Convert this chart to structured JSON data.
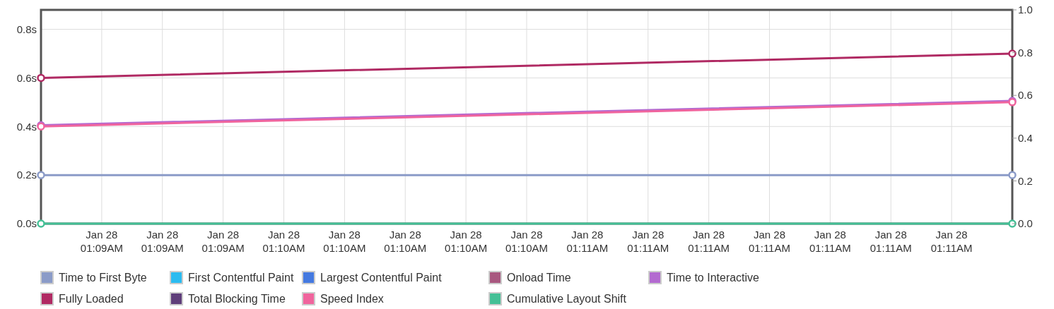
{
  "chart_data": {
    "type": "line",
    "categories": [
      null,
      "Jan 28\n01:09AM",
      "Jan 28\n01:09AM",
      "Jan 28\n01:09AM",
      "Jan 28\n01:10AM",
      "Jan 28\n01:10AM",
      "Jan 28\n01:10AM",
      "Jan 28\n01:10AM",
      "Jan 28\n01:10AM",
      "Jan 28\n01:11AM",
      "Jan 28\n01:11AM",
      "Jan 28\n01:11AM",
      "Jan 28\n01:11AM",
      "Jan 28\n01:11AM",
      "Jan 28\n01:11AM",
      "Jan 28\n01:11AM",
      null
    ],
    "ylim": [
      0,
      0.88
    ],
    "yticks": [
      {
        "value": 0,
        "label": "0.0s"
      },
      {
        "value": 0.2,
        "label": "0.2s"
      },
      {
        "value": 0.4,
        "label": "0.4s"
      },
      {
        "value": 0.6,
        "label": "0.6s"
      },
      {
        "value": 0.8,
        "label": "0.8s"
      }
    ],
    "y2lim": [
      0,
      1.0
    ],
    "y2ticks": [
      {
        "value": 0,
        "label": "0.0"
      },
      0.2,
      0.4,
      0.6,
      0.8,
      {
        "value": 1.0,
        "label": "1.0"
      }
    ],
    "grid": true,
    "legend": "bottom",
    "marker": "circle",
    "series": [
      {
        "name": "Time to First Byte",
        "color": "#8b9bc8",
        "values": [
          0.2,
          null,
          null,
          null,
          null,
          null,
          null,
          null,
          null,
          null,
          null,
          null,
          null,
          null,
          null,
          null,
          0.2
        ]
      },
      {
        "name": "First Contentful Paint",
        "color": "#2bbbf0",
        "values": [
          null,
          null,
          null,
          null,
          null,
          null,
          null,
          null,
          null,
          null,
          null,
          null,
          null,
          null,
          null,
          null,
          null
        ]
      },
      {
        "name": "Largest Contentful Paint",
        "color": "#4479e0",
        "values": [
          null,
          null,
          null,
          null,
          null,
          null,
          null,
          null,
          null,
          null,
          null,
          null,
          null,
          null,
          null,
          null,
          null
        ]
      },
      {
        "name": "Onload Time",
        "color": "#a8577f",
        "values": [
          null,
          null,
          null,
          null,
          null,
          null,
          null,
          null,
          null,
          null,
          null,
          null,
          null,
          null,
          null,
          null,
          null
        ]
      },
      {
        "name": "Time to Interactive",
        "color": "#b36ad0",
        "values": [
          0.405,
          null,
          null,
          null,
          null,
          null,
          null,
          null,
          null,
          null,
          null,
          null,
          null,
          null,
          null,
          null,
          0.505
        ]
      },
      {
        "name": "Fully Loaded",
        "color": "#b02a63",
        "values": [
          0.6,
          null,
          null,
          null,
          null,
          null,
          null,
          null,
          null,
          null,
          null,
          null,
          null,
          null,
          null,
          null,
          0.7
        ]
      },
      {
        "name": "Total Blocking Time",
        "color": "#5f3e7a",
        "values": [
          null,
          null,
          null,
          null,
          null,
          null,
          null,
          null,
          null,
          null,
          null,
          null,
          null,
          null,
          null,
          null,
          null
        ]
      },
      {
        "name": "Speed Index",
        "color": "#f0649d",
        "values": [
          0.4,
          null,
          null,
          null,
          null,
          null,
          null,
          null,
          null,
          null,
          null,
          null,
          null,
          null,
          null,
          null,
          0.5
        ]
      },
      {
        "name": "Cumulative Layout Shift",
        "color": "#44c096",
        "values": [
          0,
          null,
          null,
          null,
          null,
          null,
          null,
          null,
          null,
          null,
          null,
          null,
          null,
          null,
          null,
          null,
          0
        ]
      }
    ]
  }
}
